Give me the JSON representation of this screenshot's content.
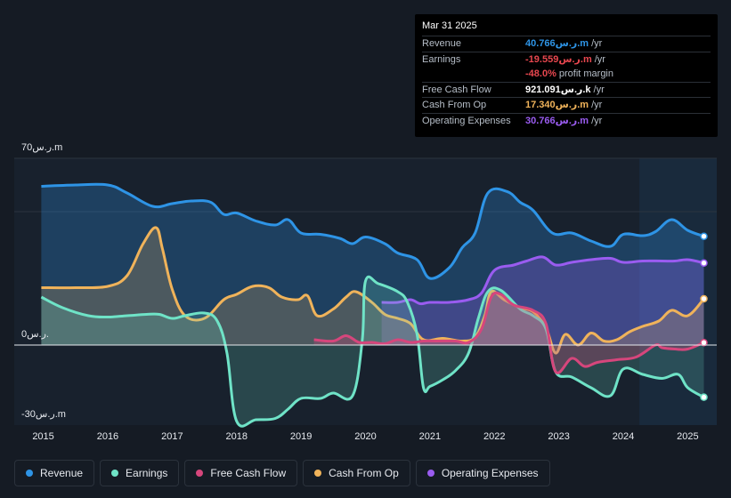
{
  "tooltip": {
    "date": "Mar 31 2025",
    "rows": [
      {
        "label": "Revenue",
        "value": "40.766ر.س.m",
        "unit": "/yr",
        "color": "#2e94e6"
      },
      {
        "label": "Earnings",
        "value": "-19.559ر.س.m",
        "unit": "/yr",
        "color": "#e8474f"
      },
      {
        "label": "",
        "value": "-48.0%",
        "unit": "profit margin",
        "color": "#e8474f"
      },
      {
        "label": "Free Cash Flow",
        "value": "921.091ر.س.k",
        "unit": "/yr",
        "color": "#ffffff"
      },
      {
        "label": "Cash From Op",
        "value": "17.340ر.س.m",
        "unit": "/yr",
        "color": "#f0b35a"
      },
      {
        "label": "Operating Expenses",
        "value": "30.766ر.س.m",
        "unit": "/yr",
        "color": "#9a5cf0"
      }
    ]
  },
  "colors": {
    "revenue": "#2e94e6",
    "earnings": "#6fe3c7",
    "fcf": "#d6467c",
    "cfo": "#f0b35a",
    "opex": "#9a5cf0"
  },
  "chart_data": {
    "type": "area",
    "title": "",
    "xlabel": "",
    "ylabel": "",
    "ylim": [
      -30,
      70
    ],
    "y_tick_labels": [
      {
        "value": 70,
        "label": "70ر.س.m"
      },
      {
        "value": 0,
        "label": "0ر.س."
      },
      {
        "value": -30,
        "label": "-30ر.س.m"
      }
    ],
    "x_tick_labels": [
      {
        "value": 2015,
        "label": "2015"
      },
      {
        "value": 2016,
        "label": "2016"
      },
      {
        "value": 2017,
        "label": "2017"
      },
      {
        "value": 2018,
        "label": "2018"
      },
      {
        "value": 2019,
        "label": "2019"
      },
      {
        "value": 2020,
        "label": "2020"
      },
      {
        "value": 2021,
        "label": "2021"
      },
      {
        "value": 2022,
        "label": "2022"
      },
      {
        "value": 2023,
        "label": "2023"
      },
      {
        "value": 2024,
        "label": "2024"
      },
      {
        "value": 2025,
        "label": "2025"
      }
    ],
    "xlim": [
      2014.55,
      2025.45
    ],
    "forecast_start": 2024.25,
    "series": [
      {
        "name": "Revenue",
        "key": "revenue",
        "points": [
          [
            2014.97,
            59.5
          ],
          [
            2015.5,
            60
          ],
          [
            2016.0,
            60
          ],
          [
            2016.3,
            57
          ],
          [
            2016.7,
            52
          ],
          [
            2017.0,
            53
          ],
          [
            2017.3,
            54
          ],
          [
            2017.6,
            53.5
          ],
          [
            2017.8,
            49
          ],
          [
            2018.0,
            49.5
          ],
          [
            2018.3,
            46.5
          ],
          [
            2018.6,
            45
          ],
          [
            2018.8,
            47
          ],
          [
            2019.0,
            42
          ],
          [
            2019.3,
            41.5
          ],
          [
            2019.6,
            40
          ],
          [
            2019.8,
            38
          ],
          [
            2020.0,
            40.5
          ],
          [
            2020.3,
            38
          ],
          [
            2020.5,
            34.5
          ],
          [
            2020.8,
            32
          ],
          [
            2021.0,
            25
          ],
          [
            2021.3,
            29
          ],
          [
            2021.5,
            36.5
          ],
          [
            2021.7,
            42
          ],
          [
            2021.9,
            57
          ],
          [
            2022.2,
            57.5
          ],
          [
            2022.4,
            53.5
          ],
          [
            2022.6,
            50.5
          ],
          [
            2022.9,
            42
          ],
          [
            2023.2,
            42
          ],
          [
            2023.5,
            39
          ],
          [
            2023.8,
            37
          ],
          [
            2024.0,
            41.5
          ],
          [
            2024.3,
            41
          ],
          [
            2024.5,
            42.5
          ],
          [
            2024.75,
            47
          ],
          [
            2025.0,
            43
          ],
          [
            2025.25,
            40.766
          ]
        ]
      },
      {
        "name": "Earnings",
        "key": "earnings",
        "points": [
          [
            2014.97,
            18
          ],
          [
            2015.3,
            14
          ],
          [
            2015.7,
            11
          ],
          [
            2016.0,
            10.5
          ],
          [
            2016.3,
            11
          ],
          [
            2016.6,
            11.5
          ],
          [
            2016.8,
            11.5
          ],
          [
            2017.0,
            10
          ],
          [
            2017.2,
            11
          ],
          [
            2017.5,
            12
          ],
          [
            2017.7,
            9
          ],
          [
            2017.85,
            -3
          ],
          [
            2018.0,
            -28.5
          ],
          [
            2018.3,
            -28
          ],
          [
            2018.6,
            -27.5
          ],
          [
            2018.8,
            -24
          ],
          [
            2019.0,
            -20
          ],
          [
            2019.3,
            -20
          ],
          [
            2019.5,
            -18
          ],
          [
            2019.8,
            -19
          ],
          [
            2019.95,
            2
          ],
          [
            2020.0,
            24
          ],
          [
            2020.2,
            23
          ],
          [
            2020.5,
            20
          ],
          [
            2020.65,
            16
          ],
          [
            2020.8,
            4
          ],
          [
            2020.9,
            -16
          ],
          [
            2021.0,
            -15.5
          ],
          [
            2021.2,
            -13
          ],
          [
            2021.4,
            -9.5
          ],
          [
            2021.6,
            -3
          ],
          [
            2021.75,
            10
          ],
          [
            2021.9,
            20
          ],
          [
            2022.1,
            20.5
          ],
          [
            2022.4,
            13.5
          ],
          [
            2022.6,
            11
          ],
          [
            2022.8,
            6
          ],
          [
            2022.95,
            -10
          ],
          [
            2023.2,
            -12
          ],
          [
            2023.5,
            -16
          ],
          [
            2023.8,
            -19
          ],
          [
            2024.0,
            -9
          ],
          [
            2024.3,
            -11
          ],
          [
            2024.6,
            -12.5
          ],
          [
            2024.85,
            -11
          ],
          [
            2025.0,
            -16
          ],
          [
            2025.25,
            -19.559
          ]
        ]
      },
      {
        "name": "Free Cash Flow",
        "key": "fcf",
        "points": [
          [
            2019.2,
            2
          ],
          [
            2019.5,
            1.5
          ],
          [
            2019.7,
            3.5
          ],
          [
            2019.9,
            1
          ],
          [
            2020.1,
            1
          ],
          [
            2020.3,
            0.5
          ],
          [
            2020.5,
            2
          ],
          [
            2020.7,
            1
          ],
          [
            2020.9,
            1.5
          ],
          [
            2021.1,
            1.5
          ],
          [
            2021.4,
            1.5
          ],
          [
            2021.6,
            1
          ],
          [
            2021.8,
            6
          ],
          [
            2021.95,
            18
          ],
          [
            2022.1,
            19
          ],
          [
            2022.3,
            15
          ],
          [
            2022.6,
            13
          ],
          [
            2022.8,
            8
          ],
          [
            2022.95,
            -10
          ],
          [
            2023.2,
            -5
          ],
          [
            2023.4,
            -8
          ],
          [
            2023.6,
            -6.5
          ],
          [
            2023.9,
            -5.5
          ],
          [
            2024.2,
            -4.5
          ],
          [
            2024.5,
            0
          ],
          [
            2024.6,
            -1
          ],
          [
            2024.8,
            -1.5
          ],
          [
            2025.0,
            -1.5
          ],
          [
            2025.25,
            0.92
          ]
        ]
      },
      {
        "name": "Cash From Op",
        "key": "cfo",
        "points": [
          [
            2014.97,
            21.5
          ],
          [
            2015.5,
            21.5
          ],
          [
            2016.0,
            22
          ],
          [
            2016.3,
            26
          ],
          [
            2016.55,
            38
          ],
          [
            2016.75,
            44
          ],
          [
            2016.85,
            36
          ],
          [
            2017.0,
            21
          ],
          [
            2017.2,
            11
          ],
          [
            2017.5,
            10
          ],
          [
            2017.8,
            17
          ],
          [
            2018.0,
            19
          ],
          [
            2018.25,
            22
          ],
          [
            2018.5,
            21.5
          ],
          [
            2018.7,
            18
          ],
          [
            2018.95,
            17
          ],
          [
            2019.1,
            18.5
          ],
          [
            2019.25,
            11
          ],
          [
            2019.5,
            13.5
          ],
          [
            2019.7,
            18
          ],
          [
            2019.85,
            20
          ],
          [
            2020.1,
            16
          ],
          [
            2020.3,
            11.5
          ],
          [
            2020.5,
            10
          ],
          [
            2020.7,
            8
          ],
          [
            2020.9,
            2
          ],
          [
            2021.2,
            2.5
          ],
          [
            2021.5,
            1.5
          ],
          [
            2021.7,
            3
          ],
          [
            2021.85,
            11
          ],
          [
            2021.95,
            20
          ],
          [
            2022.15,
            17
          ],
          [
            2022.4,
            14
          ],
          [
            2022.6,
            12.5
          ],
          [
            2022.8,
            6.5
          ],
          [
            2022.95,
            -3
          ],
          [
            2023.1,
            4
          ],
          [
            2023.3,
            0
          ],
          [
            2023.5,
            4.5
          ],
          [
            2023.7,
            1.5
          ],
          [
            2023.9,
            2
          ],
          [
            2024.1,
            5
          ],
          [
            2024.3,
            7
          ],
          [
            2024.55,
            9
          ],
          [
            2024.75,
            13
          ],
          [
            2025.0,
            11
          ],
          [
            2025.25,
            17.34
          ]
        ]
      },
      {
        "name": "Operating Expenses",
        "key": "opex",
        "points": [
          [
            2020.25,
            16
          ],
          [
            2020.5,
            16
          ],
          [
            2020.7,
            17
          ],
          [
            2020.85,
            15.5
          ],
          [
            2021.0,
            16
          ],
          [
            2021.3,
            16
          ],
          [
            2021.6,
            17
          ],
          [
            2021.8,
            19.5
          ],
          [
            2022.0,
            28
          ],
          [
            2022.3,
            30
          ],
          [
            2022.5,
            31.5
          ],
          [
            2022.75,
            33
          ],
          [
            2022.95,
            30
          ],
          [
            2023.2,
            31
          ],
          [
            2023.5,
            32
          ],
          [
            2023.8,
            32.5
          ],
          [
            2024.0,
            31
          ],
          [
            2024.3,
            31.5
          ],
          [
            2024.6,
            31.5
          ],
          [
            2024.8,
            31.5
          ],
          [
            2025.0,
            32
          ],
          [
            2025.25,
            30.766
          ]
        ]
      }
    ]
  },
  "legend": [
    {
      "label": "Revenue",
      "key": "revenue"
    },
    {
      "label": "Earnings",
      "key": "earnings"
    },
    {
      "label": "Free Cash Flow",
      "key": "fcf"
    },
    {
      "label": "Cash From Op",
      "key": "cfo"
    },
    {
      "label": "Operating Expenses",
      "key": "opex"
    }
  ]
}
